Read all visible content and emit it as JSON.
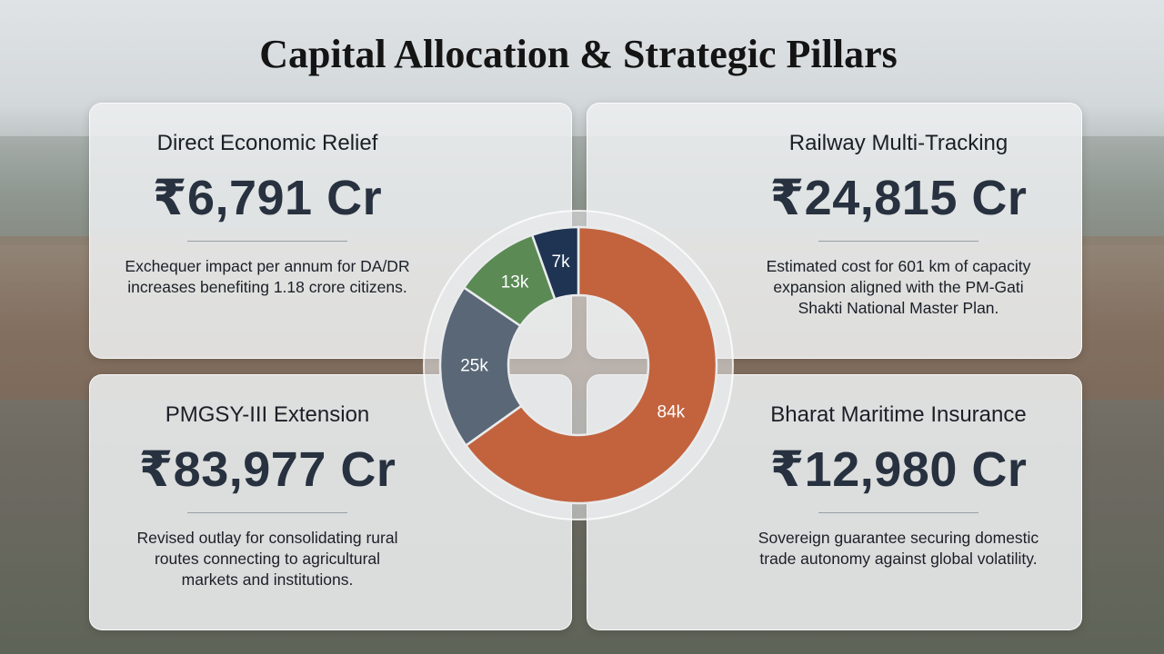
{
  "title": "Capital Allocation & Strategic Pillars",
  "cards": [
    {
      "heading": "Direct Economic Relief",
      "amount": "₹6,791 Cr",
      "lines": [
        "Exchequer impact per annum for DA/DR",
        "increases benefiting 1.18 crore citizens."
      ]
    },
    {
      "heading": "Railway Multi-Tracking",
      "amount": "₹24,815 Cr",
      "lines": [
        "Estimated cost for 601 km of capacity",
        "expansion aligned with the PM-Gati",
        "Shakti National Master Plan."
      ]
    },
    {
      "heading": "PMGSY-III Extension",
      "amount": "₹83,977 Cr",
      "lines": [
        "Revised outlay for consolidating rural",
        "routes connecting to agricultural",
        "markets and institutions."
      ]
    },
    {
      "heading": "Bharat Maritime Insurance",
      "amount": "₹12,980 Cr",
      "lines": [
        "Sovereign guarantee securing domestic",
        "trade autonomy against global volatility."
      ]
    }
  ],
  "chart_data": {
    "type": "pie",
    "donut": true,
    "values": [
      84000,
      25000,
      13000,
      7000
    ],
    "value_labels": [
      "84k",
      "25k",
      "13k",
      "7k"
    ],
    "colors": [
      "#c2633e",
      "#596777",
      "#5b8a55",
      "#1f3452"
    ]
  }
}
